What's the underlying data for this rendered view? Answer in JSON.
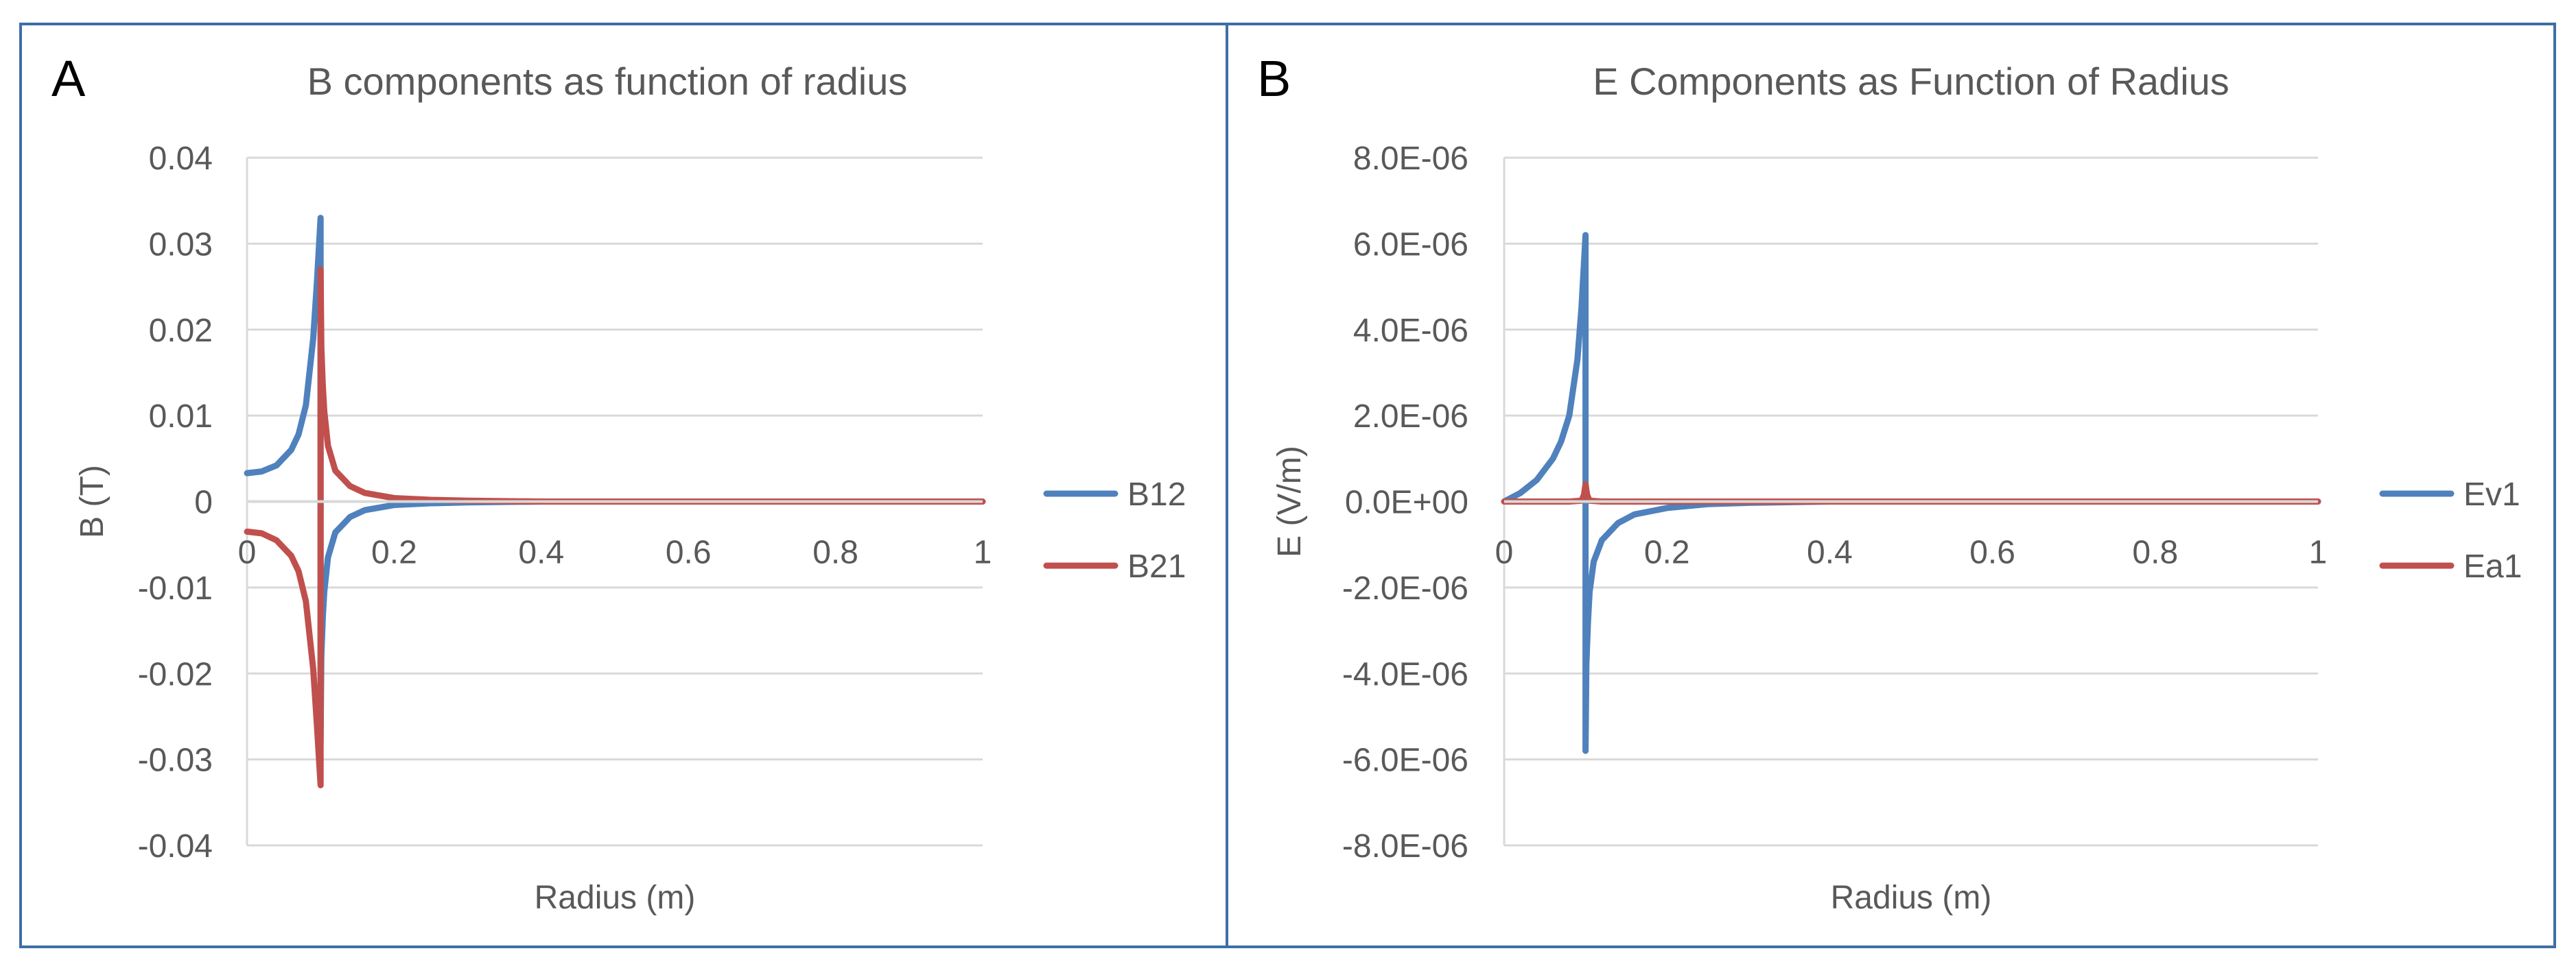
{
  "colors": {
    "series1": "#4f81bd",
    "series2": "#c0504d",
    "frame": "#3d6fa6",
    "grid": "#d9d9d9",
    "text": "#595959"
  },
  "chart_data": [
    {
      "type": "line",
      "panel_label": "A",
      "title": "B components as function of radius",
      "xlabel": "Radius (m)",
      "ylabel": "B (T)",
      "xlim": [
        0,
        1
      ],
      "ylim": [
        -0.04,
        0.04
      ],
      "x_ticks": [
        0,
        0.2,
        0.4,
        0.6,
        0.8,
        1
      ],
      "x_tick_labels": [
        "0",
        "0.2",
        "0.4",
        "0.6",
        "0.8",
        "1"
      ],
      "y_ticks": [
        0.04,
        0.03,
        0.02,
        0.01,
        0,
        -0.01,
        -0.02,
        -0.03,
        -0.04
      ],
      "y_tick_labels": [
        "0.04",
        "0.03",
        "0.02",
        "0.01",
        "0",
        "-0.01",
        "-0.02",
        "-0.03",
        "-0.04"
      ],
      "legend_position": "right",
      "series": [
        {
          "name": "B12",
          "color": "#4f81bd",
          "x": [
            0,
            0.02,
            0.04,
            0.06,
            0.07,
            0.08,
            0.09,
            0.095,
            0.1,
            0.1,
            0.101,
            0.103,
            0.105,
            0.11,
            0.12,
            0.14,
            0.16,
            0.2,
            0.25,
            0.3,
            0.4,
            0.6,
            0.8,
            1.0
          ],
          "y": [
            0.0033,
            0.0035,
            0.0042,
            0.006,
            0.0078,
            0.0112,
            0.019,
            0.0255,
            0.033,
            -0.028,
            -0.018,
            -0.0135,
            -0.0105,
            -0.0065,
            -0.0036,
            -0.0018,
            -0.001,
            -0.0004,
            -0.0002,
            -0.0001,
            0,
            0,
            0,
            0
          ]
        },
        {
          "name": "B21",
          "color": "#c0504d",
          "x": [
            0,
            0.02,
            0.04,
            0.06,
            0.07,
            0.08,
            0.09,
            0.095,
            0.1,
            0.1,
            0.101,
            0.103,
            0.105,
            0.11,
            0.12,
            0.14,
            0.16,
            0.2,
            0.25,
            0.3,
            0.4,
            0.6,
            0.8,
            1.0
          ],
          "y": [
            -0.0035,
            -0.0037,
            -0.0045,
            -0.0063,
            -0.0081,
            -0.0116,
            -0.0195,
            -0.026,
            -0.033,
            0.027,
            0.018,
            0.0135,
            0.0105,
            0.0065,
            0.0036,
            0.0018,
            0.001,
            0.0004,
            0.0002,
            0.0001,
            0,
            0,
            0,
            0
          ]
        }
      ]
    },
    {
      "type": "line",
      "panel_label": "B",
      "title": "E Components as Function of Radius",
      "xlabel": "Radius (m)",
      "ylabel": "E (V/m)",
      "xlim": [
        0,
        1
      ],
      "ylim": [
        -8e-06,
        8e-06
      ],
      "x_ticks": [
        0,
        0.2,
        0.4,
        0.6,
        0.8,
        1
      ],
      "x_tick_labels": [
        "0",
        "0.2",
        "0.4",
        "0.6",
        "0.8",
        "1"
      ],
      "y_ticks": [
        8e-06,
        6e-06,
        4e-06,
        2e-06,
        0,
        -2e-06,
        -4e-06,
        -6e-06,
        -8e-06
      ],
      "y_tick_labels": [
        "8.0E-06",
        "6.0E-06",
        "4.0E-06",
        "2.0E-06",
        "0.0E+00",
        "-2.0E-06",
        "-4.0E-06",
        "-6.0E-06",
        "-8.0E-06"
      ],
      "legend_position": "right",
      "series": [
        {
          "name": "Ev1",
          "color": "#4f81bd",
          "x": [
            0,
            0.02,
            0.04,
            0.06,
            0.07,
            0.08,
            0.09,
            0.095,
            0.1,
            0.1,
            0.101,
            0.103,
            0.105,
            0.11,
            0.12,
            0.14,
            0.16,
            0.2,
            0.25,
            0.3,
            0.4,
            0.6,
            0.8,
            1.0
          ],
          "y": [
            0,
            2e-07,
            5e-07,
            1e-06,
            1.4e-06,
            2e-06,
            3.3e-06,
            4.5e-06,
            6.2e-06,
            -5.8e-06,
            -3.8e-06,
            -2.8e-06,
            -2.1e-06,
            -1.4e-06,
            -9e-07,
            -5e-07,
            -3e-07,
            -1.5e-07,
            -6e-08,
            -3e-08,
            0,
            0,
            0,
            0
          ]
        },
        {
          "name": "Ea1",
          "color": "#c0504d",
          "x": [
            0,
            0.05,
            0.08,
            0.095,
            0.098,
            0.1,
            0.102,
            0.105,
            0.12,
            0.2,
            0.4,
            0.6,
            0.8,
            1.0
          ],
          "y": [
            0,
            0,
            0,
            2e-08,
            1.5e-07,
            4e-07,
            1.5e-07,
            2e-08,
            0,
            0,
            0,
            0,
            0,
            0
          ]
        }
      ]
    }
  ]
}
